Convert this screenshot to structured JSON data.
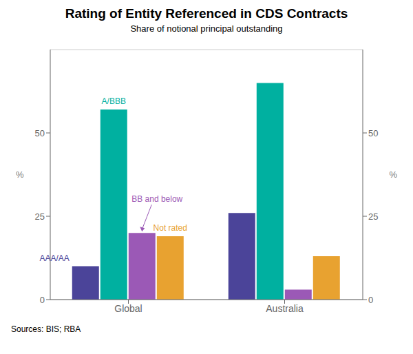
{
  "chart_data": {
    "type": "bar",
    "title": "Rating of Entity Referenced in CDS Contracts",
    "subtitle": "Share of notional principal outstanding",
    "ylabel": "%",
    "y2label": "%",
    "source": "Sources: BIS; RBA",
    "categories": [
      "Global",
      "Australia"
    ],
    "series": [
      {
        "name": "AAA/AA",
        "color": "#4B4499",
        "values": [
          10,
          26
        ]
      },
      {
        "name": "A/BBB",
        "color": "#00B0A0",
        "values": [
          57,
          65
        ]
      },
      {
        "name": "BB and below",
        "color": "#9B59B6",
        "values": [
          20,
          3
        ]
      },
      {
        "name": "Not rated",
        "color": "#E8A230",
        "values": [
          19,
          13
        ]
      }
    ],
    "ylim": [
      0,
      75
    ],
    "yticks": [
      0,
      25,
      50
    ],
    "y2lim": [
      0,
      75
    ],
    "y2ticks": [
      0,
      25,
      50
    ],
    "grid": true
  }
}
